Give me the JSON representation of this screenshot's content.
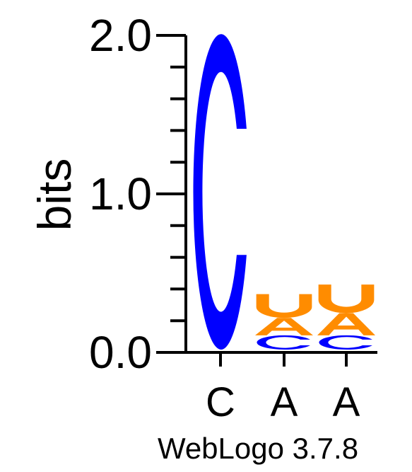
{
  "chart_data": {
    "type": "sequence-logo",
    "ylabel": "bits",
    "ylim": [
      0,
      2
    ],
    "y_ticks": [
      "0.0",
      "1.0",
      "2.0"
    ],
    "y_tick_values": [
      0,
      1,
      2
    ],
    "y_minor_step": 0.2,
    "positions": [
      {
        "label": "C",
        "letters": [
          {
            "letter": "C",
            "bits": 1.99
          }
        ]
      },
      {
        "label": "A",
        "letters": [
          {
            "letter": "C",
            "bits": 0.09
          },
          {
            "letter": "A",
            "bits": 0.11
          },
          {
            "letter": "U",
            "bits": 0.15
          }
        ]
      },
      {
        "label": "A",
        "letters": [
          {
            "letter": "C",
            "bits": 0.09
          },
          {
            "letter": "A",
            "bits": 0.14
          },
          {
            "letter": "U",
            "bits": 0.18
          }
        ]
      }
    ],
    "colors": {
      "C": "#0000ff",
      "A": "#ff8c00",
      "U": "#ff8c00"
    }
  },
  "footer": {
    "credit": "WebLogo 3.7.8"
  }
}
